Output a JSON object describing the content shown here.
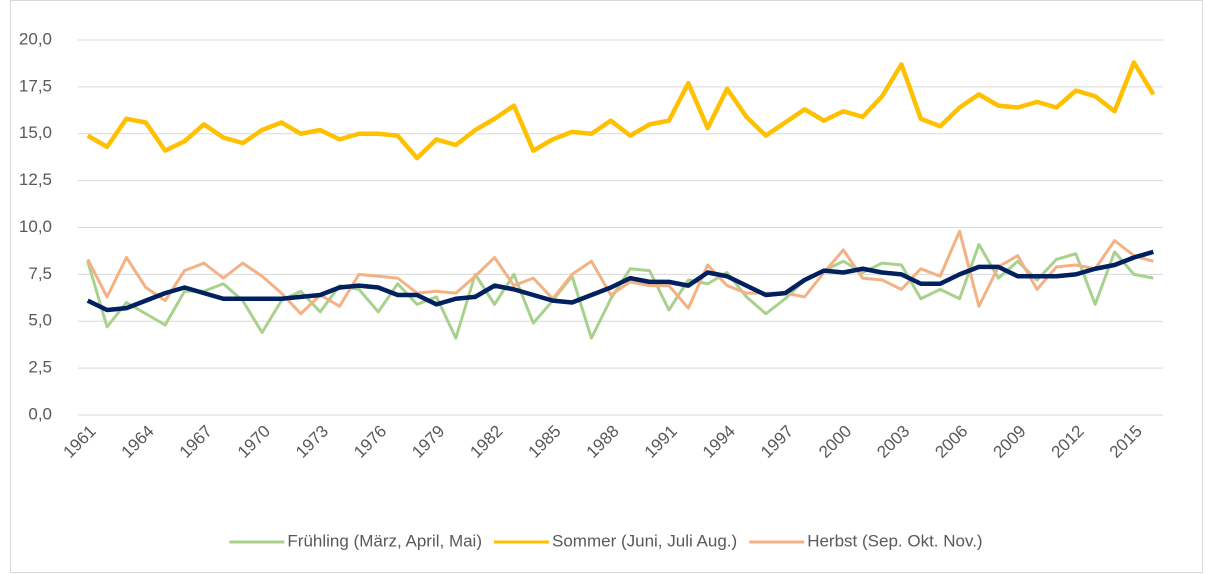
{
  "chart_data": {
    "type": "line",
    "categories": [
      "1961",
      null,
      null,
      "1964",
      null,
      null,
      "1967",
      null,
      null,
      "1970",
      null,
      null,
      "1973",
      null,
      null,
      "1976",
      null,
      null,
      "1979",
      null,
      null,
      "1982",
      null,
      null,
      "1985",
      null,
      null,
      "1988",
      null,
      null,
      "1991",
      null,
      null,
      "1994",
      null,
      null,
      "1997",
      null,
      null,
      "2000",
      null,
      null,
      "2003",
      null,
      null,
      "2006",
      null,
      null,
      "2009",
      null,
      null,
      "2012",
      null,
      null,
      "2015",
      null
    ],
    "series": [
      {
        "name": "Frühling (März, April, Mai)",
        "color": "#a9d18e",
        "values": [
          8.2,
          4.7,
          6.0,
          5.4,
          4.8,
          6.6,
          6.6,
          7.0,
          6.1,
          4.4,
          6.1,
          6.6,
          5.5,
          6.9,
          6.7,
          5.5,
          7.0,
          5.9,
          6.3,
          4.1,
          7.5,
          5.9,
          7.5,
          4.9,
          6.1,
          7.4,
          4.1,
          6.2,
          7.8,
          7.7,
          5.6,
          7.2,
          7.0,
          7.6,
          6.3,
          5.4,
          6.2,
          7.2,
          7.7,
          8.2,
          7.6,
          8.1,
          8.0,
          6.2,
          6.7,
          6.2,
          9.1,
          7.3,
          8.2,
          7.2,
          8.3,
          8.6,
          5.9,
          8.7,
          7.5,
          7.3
        ]
      },
      {
        "name": "Sommer (Juni, Juli Aug.)",
        "color": "#ffc000",
        "values": [
          14.9,
          14.3,
          15.8,
          15.6,
          14.1,
          14.6,
          15.5,
          14.8,
          14.5,
          15.2,
          15.6,
          15.0,
          15.2,
          14.7,
          15.0,
          15.0,
          14.9,
          13.7,
          14.7,
          14.4,
          15.2,
          15.8,
          16.5,
          14.1,
          14.7,
          15.1,
          15.0,
          15.7,
          14.9,
          15.5,
          15.7,
          17.7,
          15.3,
          17.4,
          15.9,
          14.9,
          15.6,
          16.3,
          15.7,
          16.2,
          15.9,
          17.0,
          18.7,
          15.8,
          15.4,
          16.4,
          17.1,
          16.5,
          16.4,
          16.7,
          16.4,
          17.3,
          17.0,
          16.2,
          18.8,
          17.1
        ]
      },
      {
        "name": "Herbst (Sep. Okt. Nov.)",
        "color": "#f4b183",
        "values": [
          8.3,
          6.3,
          8.4,
          6.8,
          6.1,
          7.7,
          8.1,
          7.3,
          8.1,
          7.4,
          6.5,
          5.4,
          6.4,
          5.8,
          7.5,
          7.4,
          7.3,
          6.5,
          6.6,
          6.5,
          7.4,
          8.4,
          6.9,
          7.3,
          6.2,
          7.5,
          8.2,
          6.4,
          7.1,
          6.9,
          6.9,
          5.7,
          8.0,
          6.9,
          6.5,
          6.5,
          6.5,
          6.3,
          7.6,
          8.8,
          7.3,
          7.2,
          6.7,
          7.8,
          7.4,
          9.8,
          5.8,
          7.9,
          8.5,
          6.7,
          7.9,
          8.0,
          7.8,
          9.3,
          8.5,
          8.2
        ]
      },
      {
        "color": "#002060",
        "values": [
          6.1,
          5.6,
          5.7,
          6.1,
          6.5,
          6.8,
          6.5,
          6.2,
          6.2,
          6.2,
          6.2,
          6.3,
          6.4,
          6.8,
          6.9,
          6.8,
          6.4,
          6.4,
          5.9,
          6.2,
          6.3,
          6.9,
          6.7,
          6.4,
          6.1,
          6.0,
          6.4,
          6.8,
          7.3,
          7.1,
          7.1,
          6.9,
          7.6,
          7.4,
          6.9,
          6.4,
          6.5,
          7.2,
          7.7,
          7.6,
          7.8,
          7.6,
          7.5,
          7.0,
          7.0,
          7.5,
          7.9,
          7.9,
          7.4,
          7.4,
          7.4,
          7.5,
          7.8,
          8.0,
          8.4,
          8.7
        ]
      }
    ],
    "ylim": [
      0,
      20
    ],
    "yticks": [
      {
        "value": 0,
        "label": "0,0"
      },
      {
        "value": 2.5,
        "label": "2,5"
      },
      {
        "value": 5,
        "label": "5,0"
      },
      {
        "value": 7.5,
        "label": "7,5"
      },
      {
        "value": 10,
        "label": "10,0"
      },
      {
        "value": 12.5,
        "label": "12,5"
      },
      {
        "value": 15,
        "label": "15,0"
      },
      {
        "value": 17.5,
        "label": "17,5"
      },
      {
        "value": 20,
        "label": "20,0"
      }
    ],
    "grid": true,
    "legend": "bottom"
  }
}
